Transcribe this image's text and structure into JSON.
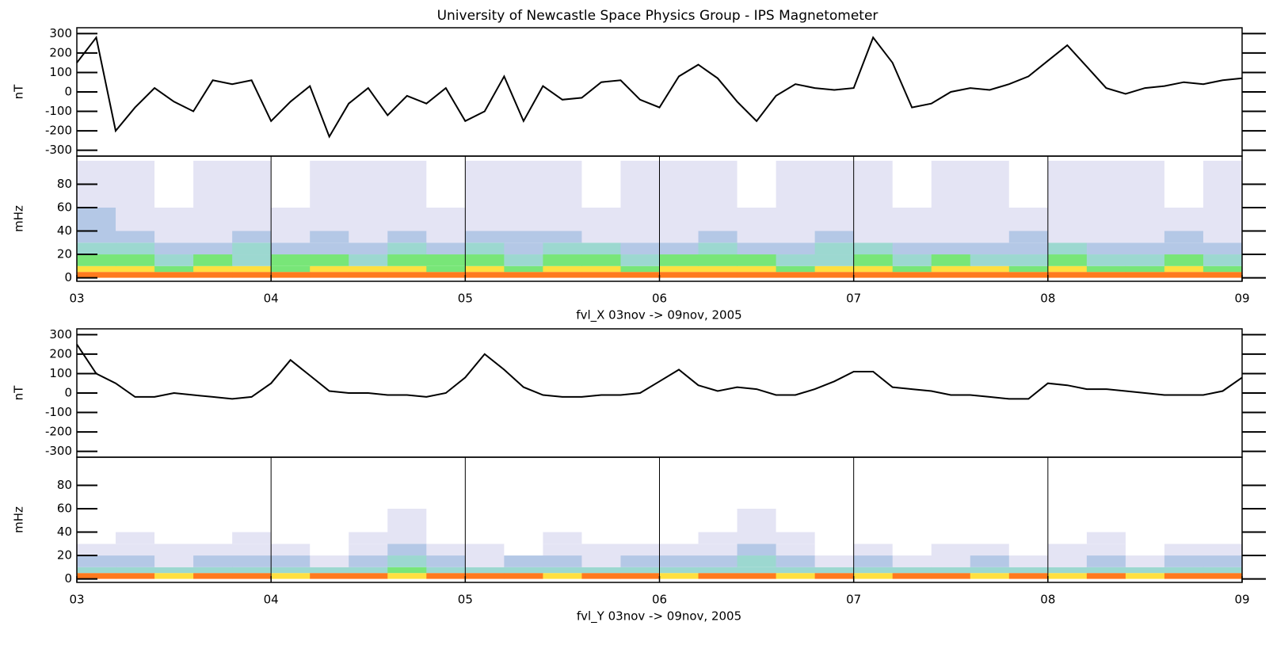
{
  "title": "University of Newcastle Space Physics Group - IPS Magnetometer",
  "chart_data": [
    {
      "type": "line",
      "ylabel": "nT",
      "color": "#000000",
      "xlim": [
        3,
        9
      ],
      "ylim": [
        -330,
        330
      ],
      "yticks": [
        -300,
        -200,
        -100,
        0,
        100,
        200,
        300
      ],
      "x": [
        3.0,
        3.1,
        3.2,
        3.3,
        3.4,
        3.5,
        3.6,
        3.7,
        3.8,
        3.9,
        4.0,
        4.1,
        4.2,
        4.3,
        4.4,
        4.5,
        4.6,
        4.7,
        4.8,
        4.9,
        5.0,
        5.1,
        5.2,
        5.3,
        5.4,
        5.5,
        5.6,
        5.7,
        5.8,
        5.9,
        6.0,
        6.1,
        6.2,
        6.3,
        6.4,
        6.5,
        6.6,
        6.7,
        6.8,
        6.9,
        7.0,
        7.1,
        7.2,
        7.3,
        7.4,
        7.5,
        7.6,
        7.7,
        7.8,
        7.9,
        8.0,
        8.1,
        8.2,
        8.3,
        8.4,
        8.5,
        8.6,
        8.7,
        8.8,
        8.9,
        9.0
      ],
      "values": [
        150,
        280,
        -200,
        -80,
        20,
        -50,
        -100,
        60,
        40,
        60,
        -150,
        -50,
        30,
        -230,
        -60,
        20,
        -120,
        -20,
        -60,
        20,
        -150,
        -100,
        80,
        -150,
        30,
        -40,
        -30,
        50,
        60,
        -40,
        -80,
        80,
        140,
        70,
        -50,
        -150,
        -20,
        40,
        20,
        10,
        20,
        280,
        150,
        -80,
        -60,
        0,
        20,
        10,
        40,
        80,
        160,
        240,
        130,
        20,
        -10,
        20,
        30,
        50,
        40,
        60,
        70
      ]
    },
    {
      "type": "heatmap",
      "ylabel": "mHz",
      "xlabel": "fvl_X 03nov -> 09nov, 2005",
      "grid": true,
      "xlim": [
        3,
        9
      ],
      "ylim": [
        -3,
        104
      ],
      "yticks": [
        0,
        20,
        40,
        60,
        80
      ],
      "xticks": [
        {
          "value": 3,
          "label": "03"
        },
        {
          "value": 4,
          "label": "04"
        },
        {
          "value": 5,
          "label": "05"
        },
        {
          "value": 6,
          "label": "06"
        },
        {
          "value": 7,
          "label": "07"
        },
        {
          "value": 8,
          "label": "08"
        },
        {
          "value": 9,
          "label": "09"
        }
      ],
      "colorscale": [
        "#ffffff",
        "#e4e4f4",
        "#b4c8e6",
        "#9cd8d0",
        "#78e678",
        "#ffe040",
        "#ff7a1e"
      ],
      "x_bins": [
        3.0,
        3.2,
        3.4,
        3.6,
        3.8,
        4.0,
        4.2,
        4.4,
        4.6,
        4.8,
        5.0,
        5.2,
        5.4,
        5.6,
        5.8,
        6.0,
        6.2,
        6.4,
        6.6,
        6.8,
        7.0,
        7.2,
        7.4,
        7.6,
        7.8,
        8.0,
        8.2,
        8.4,
        8.6,
        8.8,
        9.0
      ],
      "y_bins": [
        0,
        5,
        10,
        20,
        30,
        40,
        60,
        100
      ],
      "z": [
        [
          6,
          6,
          6,
          6,
          6,
          6,
          6,
          6,
          6,
          6,
          6,
          6,
          6,
          6,
          6,
          6,
          6,
          6,
          6,
          6,
          6,
          6,
          6,
          6,
          6,
          6,
          6,
          6,
          6,
          6
        ],
        [
          5,
          5,
          4,
          5,
          5,
          4,
          5,
          5,
          5,
          4,
          5,
          4,
          5,
          5,
          4,
          5,
          5,
          5,
          4,
          5,
          5,
          4,
          5,
          5,
          4,
          5,
          4,
          4,
          5,
          4
        ],
        [
          4,
          4,
          3,
          4,
          3,
          4,
          4,
          3,
          4,
          4,
          4,
          3,
          4,
          4,
          3,
          4,
          4,
          4,
          3,
          3,
          4,
          3,
          4,
          3,
          3,
          4,
          3,
          3,
          4,
          3
        ],
        [
          3,
          3,
          2,
          2,
          3,
          2,
          2,
          2,
          3,
          2,
          3,
          2,
          3,
          3,
          2,
          2,
          3,
          2,
          2,
          3,
          3,
          2,
          2,
          2,
          2,
          3,
          2,
          2,
          2,
          2
        ],
        [
          2,
          2,
          1,
          1,
          2,
          1,
          2,
          1,
          2,
          1,
          2,
          2,
          2,
          1,
          1,
          1,
          2,
          1,
          1,
          2,
          1,
          1,
          1,
          1,
          2,
          1,
          1,
          1,
          2,
          1
        ],
        [
          2,
          1,
          1,
          1,
          1,
          1,
          1,
          1,
          1,
          1,
          1,
          1,
          1,
          1,
          1,
          1,
          1,
          1,
          1,
          1,
          1,
          1,
          1,
          1,
          1,
          1,
          1,
          1,
          1,
          1
        ],
        [
          1,
          1,
          0,
          1,
          1,
          0,
          1,
          1,
          1,
          0,
          1,
          1,
          1,
          0,
          1,
          1,
          1,
          0,
          1,
          1,
          1,
          0,
          1,
          1,
          0,
          1,
          1,
          1,
          0,
          1
        ]
      ]
    },
    {
      "type": "line",
      "ylabel": "nT",
      "color": "#000000",
      "xlim": [
        3,
        9
      ],
      "ylim": [
        -330,
        330
      ],
      "yticks": [
        -300,
        -200,
        -100,
        0,
        100,
        200,
        300
      ],
      "x": [
        3.0,
        3.1,
        3.2,
        3.3,
        3.4,
        3.5,
        3.6,
        3.7,
        3.8,
        3.9,
        4.0,
        4.1,
        4.2,
        4.3,
        4.4,
        4.5,
        4.6,
        4.7,
        4.8,
        4.9,
        5.0,
        5.1,
        5.2,
        5.3,
        5.4,
        5.5,
        5.6,
        5.7,
        5.8,
        5.9,
        6.0,
        6.1,
        6.2,
        6.3,
        6.4,
        6.5,
        6.6,
        6.7,
        6.8,
        6.9,
        7.0,
        7.1,
        7.2,
        7.3,
        7.4,
        7.5,
        7.6,
        7.7,
        7.8,
        7.9,
        8.0,
        8.1,
        8.2,
        8.3,
        8.4,
        8.5,
        8.6,
        8.7,
        8.8,
        8.9,
        9.0
      ],
      "values": [
        250,
        100,
        50,
        -20,
        -20,
        0,
        -10,
        -20,
        -30,
        -20,
        50,
        170,
        90,
        10,
        0,
        0,
        -10,
        -10,
        -20,
        0,
        80,
        200,
        120,
        30,
        -10,
        -20,
        -20,
        -10,
        -10,
        0,
        60,
        120,
        40,
        10,
        30,
        20,
        -10,
        -10,
        20,
        60,
        110,
        110,
        30,
        20,
        10,
        -10,
        -10,
        -20,
        -30,
        -30,
        50,
        40,
        20,
        20,
        10,
        0,
        -10,
        -10,
        -10,
        10,
        80
      ]
    },
    {
      "type": "heatmap",
      "ylabel": "mHz",
      "xlabel": "fvl_Y 03nov -> 09nov, 2005",
      "grid": true,
      "xlim": [
        3,
        9
      ],
      "ylim": [
        -3,
        104
      ],
      "yticks": [
        0,
        20,
        40,
        60,
        80
      ],
      "xticks": [
        {
          "value": 3,
          "label": "03"
        },
        {
          "value": 4,
          "label": "04"
        },
        {
          "value": 5,
          "label": "05"
        },
        {
          "value": 6,
          "label": "06"
        },
        {
          "value": 7,
          "label": "07"
        },
        {
          "value": 8,
          "label": "08"
        },
        {
          "value": 9,
          "label": "09"
        }
      ],
      "colorscale": [
        "#ffffff",
        "#e4e4f4",
        "#b4c8e6",
        "#9cd8d0",
        "#78e678",
        "#ffe040",
        "#ff7a1e"
      ],
      "x_bins": [
        3.0,
        3.2,
        3.4,
        3.6,
        3.8,
        4.0,
        4.2,
        4.4,
        4.6,
        4.8,
        5.0,
        5.2,
        5.4,
        5.6,
        5.8,
        6.0,
        6.2,
        6.4,
        6.6,
        6.8,
        7.0,
        7.2,
        7.4,
        7.6,
        7.8,
        8.0,
        8.2,
        8.4,
        8.6,
        8.8,
        9.0
      ],
      "y_bins": [
        0,
        5,
        10,
        20,
        30,
        40,
        60,
        100
      ],
      "z": [
        [
          6,
          6,
          5,
          6,
          6,
          5,
          6,
          6,
          5,
          6,
          6,
          6,
          5,
          6,
          6,
          5,
          6,
          6,
          5,
          6,
          5,
          6,
          6,
          5,
          6,
          5,
          6,
          5,
          6,
          6
        ],
        [
          3,
          3,
          3,
          3,
          3,
          3,
          3,
          3,
          4,
          3,
          3,
          3,
          3,
          3,
          3,
          3,
          3,
          3,
          3,
          3,
          3,
          3,
          3,
          3,
          3,
          3,
          3,
          3,
          3,
          3
        ],
        [
          2,
          2,
          1,
          2,
          2,
          2,
          1,
          2,
          3,
          2,
          1,
          2,
          2,
          1,
          2,
          2,
          2,
          3,
          2,
          1,
          2,
          1,
          1,
          2,
          1,
          1,
          2,
          1,
          2,
          2
        ],
        [
          1,
          1,
          1,
          1,
          1,
          1,
          0,
          1,
          2,
          1,
          1,
          0,
          1,
          1,
          1,
          1,
          1,
          2,
          1,
          0,
          1,
          0,
          1,
          1,
          0,
          1,
          1,
          0,
          1,
          1
        ],
        [
          0,
          1,
          0,
          0,
          1,
          0,
          0,
          1,
          1,
          0,
          0,
          0,
          1,
          0,
          0,
          0,
          1,
          1,
          1,
          0,
          0,
          0,
          0,
          0,
          0,
          0,
          1,
          0,
          0,
          0
        ],
        [
          0,
          0,
          0,
          0,
          0,
          0,
          0,
          0,
          1,
          0,
          0,
          0,
          0,
          0,
          0,
          0,
          0,
          1,
          0,
          0,
          0,
          0,
          0,
          0,
          0,
          0,
          0,
          0,
          0,
          0
        ],
        [
          0,
          0,
          0,
          0,
          0,
          0,
          0,
          0,
          0,
          0,
          0,
          0,
          0,
          0,
          0,
          0,
          0,
          0,
          0,
          0,
          0,
          0,
          0,
          0,
          0,
          0,
          0,
          0,
          0,
          0
        ]
      ]
    }
  ]
}
